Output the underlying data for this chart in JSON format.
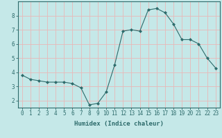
{
  "x": [
    0,
    1,
    2,
    3,
    4,
    5,
    6,
    7,
    8,
    9,
    10,
    11,
    12,
    13,
    14,
    15,
    16,
    17,
    18,
    19,
    20,
    21,
    22,
    23
  ],
  "y": [
    3.8,
    3.5,
    3.4,
    3.3,
    3.3,
    3.3,
    3.2,
    2.9,
    1.7,
    1.8,
    2.6,
    4.5,
    6.9,
    7.0,
    6.9,
    8.4,
    8.5,
    8.2,
    7.4,
    6.3,
    6.3,
    6.0,
    5.0,
    4.3
  ],
  "line_color": "#2d6b6b",
  "marker": "D",
  "marker_size": 2.0,
  "bg_color": "#c5e8e8",
  "grid_color": "#e8b8b8",
  "xlabel": "Humidex (Indice chaleur)",
  "xlim": [
    -0.5,
    23.5
  ],
  "ylim": [
    1.5,
    9.0
  ],
  "yticks": [
    2,
    3,
    4,
    5,
    6,
    7,
    8
  ],
  "xticks": [
    0,
    1,
    2,
    3,
    4,
    5,
    6,
    7,
    8,
    9,
    10,
    11,
    12,
    13,
    14,
    15,
    16,
    17,
    18,
    19,
    20,
    21,
    22,
    23
  ],
  "tick_color": "#2d6b6b",
  "label_fontsize": 6.5,
  "tick_fontsize": 5.5,
  "spine_color": "#2d6b6b"
}
